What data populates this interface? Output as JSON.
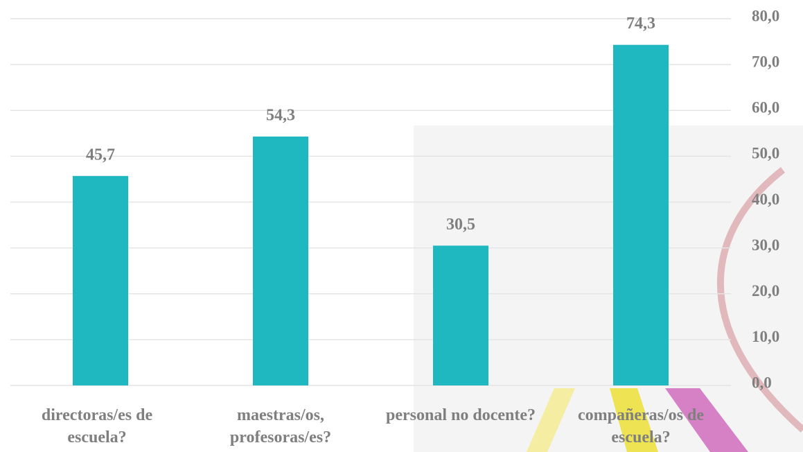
{
  "chart_data": {
    "type": "bar",
    "categories": [
      "directoras/es de escuela?",
      "maestras/os, profesoras/es?",
      "personal no docente?",
      "compañeras/os de escuela?"
    ],
    "values": [
      45.7,
      54.3,
      30.5,
      74.3
    ],
    "value_labels": [
      "45,7",
      "54,3",
      "30,5",
      "74,3"
    ],
    "color": "#1fb8c1",
    "ylim": [
      0,
      80
    ],
    "yticks": [
      {
        "value": 0,
        "label": "0,0"
      },
      {
        "value": 10,
        "label": "10,0"
      },
      {
        "value": 20,
        "label": "20,0"
      },
      {
        "value": 30,
        "label": "30,0"
      },
      {
        "value": 40,
        "label": "40,0"
      },
      {
        "value": 50,
        "label": "50,0"
      },
      {
        "value": 60,
        "label": "60,0"
      },
      {
        "value": 70,
        "label": "70,0"
      },
      {
        "value": 80,
        "label": "80,0"
      }
    ],
    "y_axis_side": "right",
    "grid": true
  }
}
